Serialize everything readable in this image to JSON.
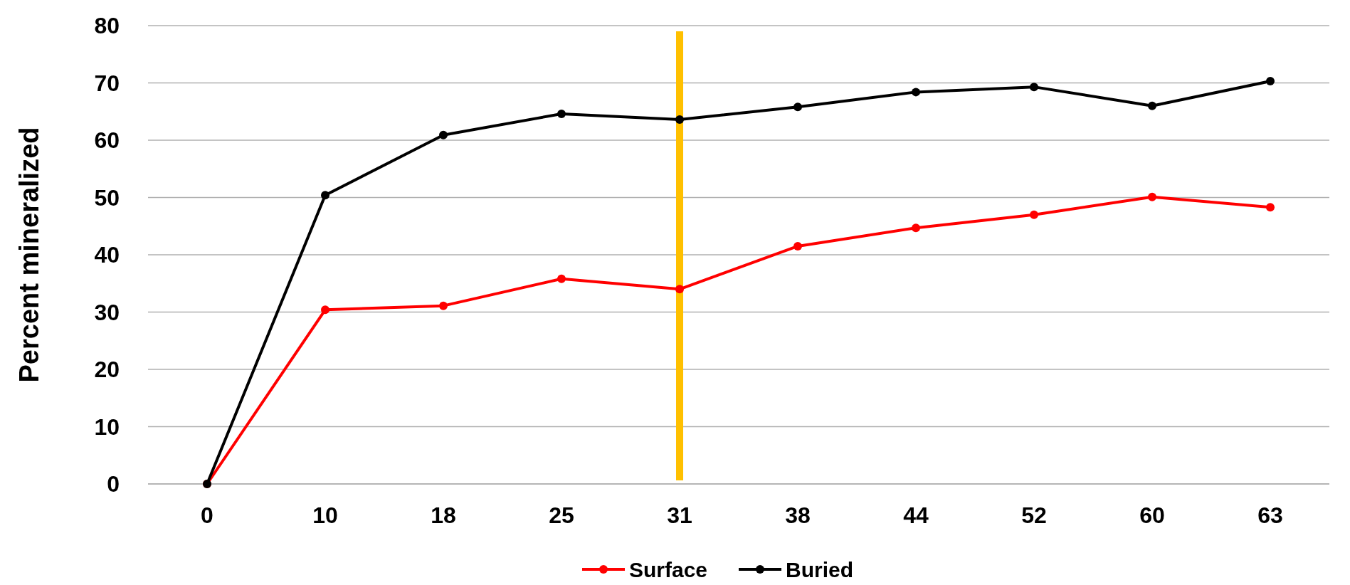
{
  "chart_data": {
    "type": "line",
    "ylabel": "Percent mineralized",
    "categories": [
      "0",
      "10",
      "18",
      "25",
      "31",
      "38",
      "44",
      "52",
      "60",
      "63"
    ],
    "series": [
      {
        "name": "Surface",
        "color": "#ff0000",
        "values": [
          0,
          30.4,
          31.1,
          35.8,
          34.0,
          41.5,
          44.7,
          47.0,
          50.1,
          48.3
        ]
      },
      {
        "name": "Buried",
        "color": "#000000",
        "values": [
          0,
          50.4,
          60.9,
          64.6,
          63.6,
          65.8,
          68.4,
          69.3,
          66.0,
          70.3
        ]
      }
    ],
    "ylim": [
      0,
      80
    ],
    "yticks": [
      0,
      10,
      20,
      30,
      40,
      50,
      60,
      70,
      80
    ],
    "grid": "y",
    "legend": "bottom",
    "marker": "circle",
    "line_style": "solid",
    "ref_lines": [
      {
        "axis": "x",
        "value": "31",
        "color": "#ffc000"
      }
    ]
  }
}
